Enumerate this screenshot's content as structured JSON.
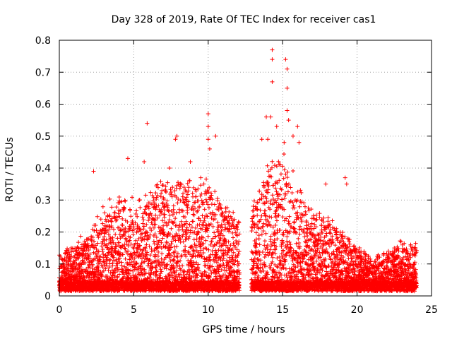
{
  "chart_data": {
    "type": "scatter",
    "title": "Day 328 of 2019, Rate Of TEC Index for receiver cas1",
    "xlabel": "GPS time / hours",
    "ylabel": "ROTI / TECUs",
    "xlim": [
      0,
      25
    ],
    "ylim": [
      0,
      0.8
    ],
    "x_ticks": [
      0,
      5,
      10,
      15,
      20,
      25
    ],
    "y_ticks": [
      0,
      0.1,
      0.2,
      0.3,
      0.4,
      0.5,
      0.6,
      0.7,
      0.8
    ],
    "x_tick_labels": [
      "0",
      "5",
      "10",
      "15",
      "20",
      "25"
    ],
    "y_tick_labels": [
      "0",
      "0.1",
      "0.2",
      "0.3",
      "0.4",
      "0.5",
      "0.6",
      "0.7",
      "0.8"
    ],
    "grid": true,
    "marker": "+",
    "color": "#ff0000",
    "data_gaps_hours": [
      [
        12.1,
        12.9
      ]
    ],
    "envelope": {
      "description": "approximate upper extent of dense ROTI values per hour",
      "x": [
        0,
        1,
        2,
        3,
        4,
        5,
        6,
        7,
        8,
        9,
        10,
        11,
        12,
        13,
        14,
        15,
        16,
        17,
        18,
        19,
        20,
        21,
        22,
        23,
        24
      ],
      "y": [
        0.09,
        0.12,
        0.16,
        0.23,
        0.26,
        0.25,
        0.3,
        0.3,
        0.33,
        0.32,
        0.3,
        0.25,
        0.2,
        0.25,
        0.35,
        0.4,
        0.3,
        0.22,
        0.2,
        0.16,
        0.12,
        0.08,
        0.1,
        0.14,
        0.12
      ]
    },
    "notable_points": [
      {
        "x": 2.3,
        "y": 0.39
      },
      {
        "x": 4.6,
        "y": 0.43
      },
      {
        "x": 5.7,
        "y": 0.42
      },
      {
        "x": 5.9,
        "y": 0.54
      },
      {
        "x": 7.4,
        "y": 0.4
      },
      {
        "x": 7.6,
        "y": 0.34
      },
      {
        "x": 7.8,
        "y": 0.49
      },
      {
        "x": 7.9,
        "y": 0.5
      },
      {
        "x": 8.8,
        "y": 0.42
      },
      {
        "x": 9.5,
        "y": 0.37
      },
      {
        "x": 10.0,
        "y": 0.57
      },
      {
        "x": 10.0,
        "y": 0.53
      },
      {
        "x": 10.0,
        "y": 0.49
      },
      {
        "x": 10.1,
        "y": 0.46
      },
      {
        "x": 10.5,
        "y": 0.5
      },
      {
        "x": 13.6,
        "y": 0.49
      },
      {
        "x": 13.9,
        "y": 0.56
      },
      {
        "x": 14.0,
        "y": 0.49
      },
      {
        "x": 14.2,
        "y": 0.56
      },
      {
        "x": 14.3,
        "y": 0.74
      },
      {
        "x": 14.3,
        "y": 0.77
      },
      {
        "x": 14.3,
        "y": 0.67
      },
      {
        "x": 14.6,
        "y": 0.53
      },
      {
        "x": 15.1,
        "y": 0.48
      },
      {
        "x": 15.2,
        "y": 0.74
      },
      {
        "x": 15.3,
        "y": 0.71
      },
      {
        "x": 15.3,
        "y": 0.65
      },
      {
        "x": 15.3,
        "y": 0.58
      },
      {
        "x": 15.4,
        "y": 0.55
      },
      {
        "x": 15.7,
        "y": 0.5
      },
      {
        "x": 16.0,
        "y": 0.53
      },
      {
        "x": 16.1,
        "y": 0.48
      },
      {
        "x": 17.9,
        "y": 0.35
      },
      {
        "x": 19.2,
        "y": 0.37
      },
      {
        "x": 19.3,
        "y": 0.35
      },
      {
        "x": 21.8,
        "y": 0.11
      },
      {
        "x": 23.6,
        "y": 0.16
      },
      {
        "x": 22.5,
        "y": 0.15
      }
    ]
  }
}
